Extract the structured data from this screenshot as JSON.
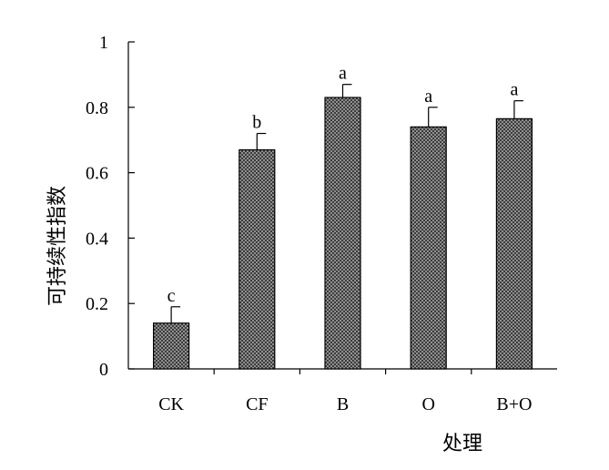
{
  "chart_data": {
    "type": "bar",
    "title": "",
    "xlabel": "处理",
    "ylabel": "可持续性指数",
    "categories": [
      "CK",
      "CF",
      "B",
      "O",
      "B+O"
    ],
    "values": [
      0.14,
      0.67,
      0.83,
      0.74,
      0.765
    ],
    "error_upper": [
      0.05,
      0.05,
      0.04,
      0.06,
      0.055
    ],
    "significance_letters": [
      "c",
      "b",
      "a",
      "a",
      "a"
    ],
    "ylim": [
      0,
      1
    ],
    "yticks": [
      0,
      0.2,
      0.4,
      0.6,
      0.8,
      1
    ],
    "ytick_labels": [
      "0",
      "0.2",
      "0.4",
      "0.6",
      "0.8",
      "1"
    ],
    "grid": false,
    "legend": "none",
    "bar_pattern": "dark-gray crosshatch"
  },
  "colors": {
    "bar_fill": "#808080",
    "bar_pattern_dark": "#404040",
    "axis": "#000000",
    "text": "#000000"
  }
}
